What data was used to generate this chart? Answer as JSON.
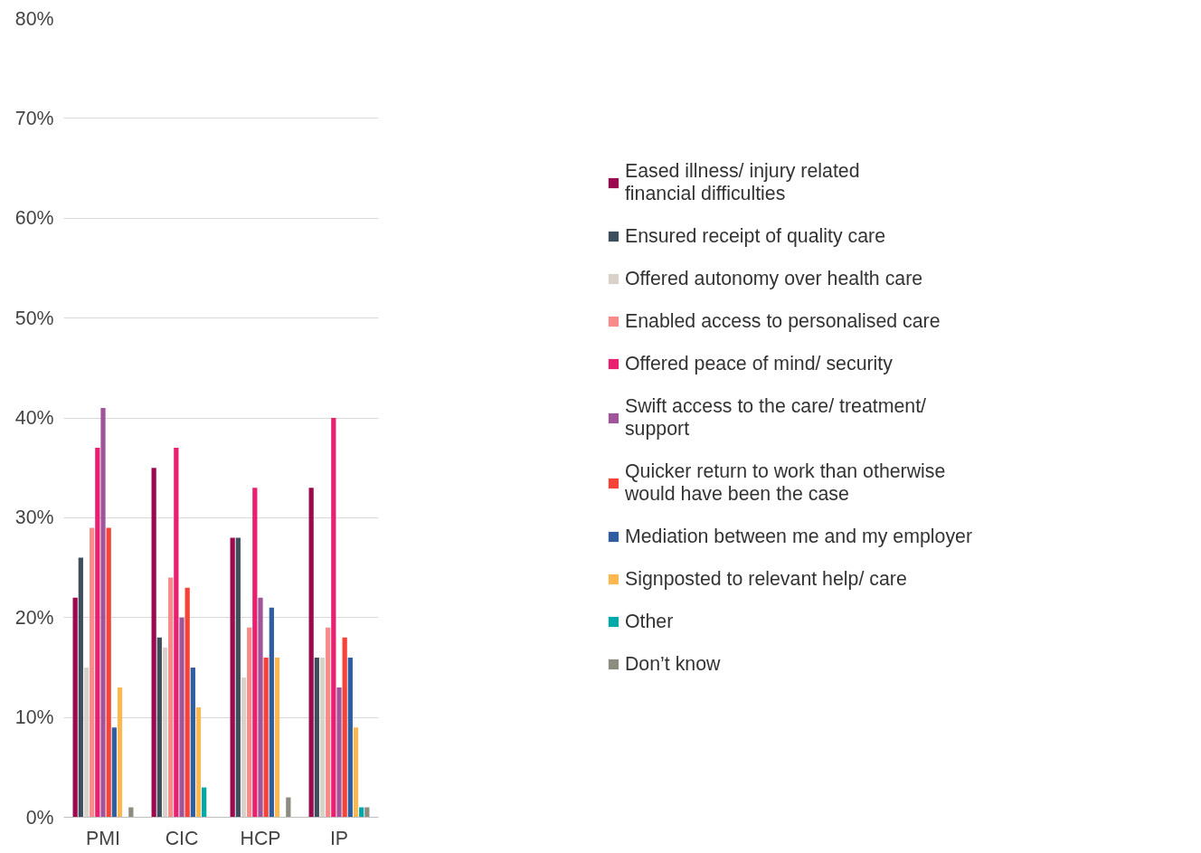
{
  "chart_data": {
    "type": "bar",
    "categories": [
      "PMI",
      "CIC",
      "HCP",
      "IP"
    ],
    "series": [
      {
        "name": "Eased illness/ injury related financial difficulties",
        "color": "#9b0a4f",
        "values": [
          22,
          35,
          28,
          33
        ]
      },
      {
        "name": "Ensured receipt of quality care",
        "color": "#3d4f5c",
        "values": [
          26,
          18,
          28,
          16
        ]
      },
      {
        "name": "Offered autonomy over health care",
        "color": "#d8d2ca",
        "values": [
          15,
          17,
          14,
          16
        ]
      },
      {
        "name": "Enabled access to personalised care",
        "color": "#f98a8a",
        "values": [
          29,
          24,
          19,
          19
        ]
      },
      {
        "name": "Offered peace of mind/ security",
        "color": "#e8206f",
        "values": [
          37,
          37,
          33,
          40
        ]
      },
      {
        "name": "Swift access to the care/ treatment/ support",
        "color": "#a0559a",
        "values": [
          41,
          20,
          22,
          13
        ]
      },
      {
        "name": "Quicker return to work than otherwise would have been the case",
        "color": "#f5433a",
        "values": [
          29,
          23,
          16,
          18
        ]
      },
      {
        "name": "Mediation between me and my employer",
        "color": "#2f5fa0",
        "values": [
          9,
          15,
          21,
          16
        ]
      },
      {
        "name": "Signposted to relevant help/ care",
        "color": "#fdb750",
        "values": [
          13,
          11,
          16,
          9
        ]
      },
      {
        "name": "Other",
        "color": "#00a8a8",
        "values": [
          null,
          3,
          null,
          1
        ]
      },
      {
        "name": "Don’t know",
        "color": "#8c8c80",
        "values": [
          1,
          null,
          2,
          1
        ]
      }
    ],
    "ylim": [
      0,
      80
    ],
    "yticks": [
      {
        "value": 0,
        "label": "0%"
      },
      {
        "value": 10,
        "label": "10%"
      },
      {
        "value": 20,
        "label": "20%"
      },
      {
        "value": 30,
        "label": "30%"
      },
      {
        "value": 40,
        "label": "40%"
      },
      {
        "value": 50,
        "label": "50%"
      },
      {
        "value": 60,
        "label": "60%"
      },
      {
        "value": 70,
        "label": "70%"
      },
      {
        "value": 80,
        "label": "80%"
      }
    ],
    "grid": "y",
    "legend": "right"
  }
}
